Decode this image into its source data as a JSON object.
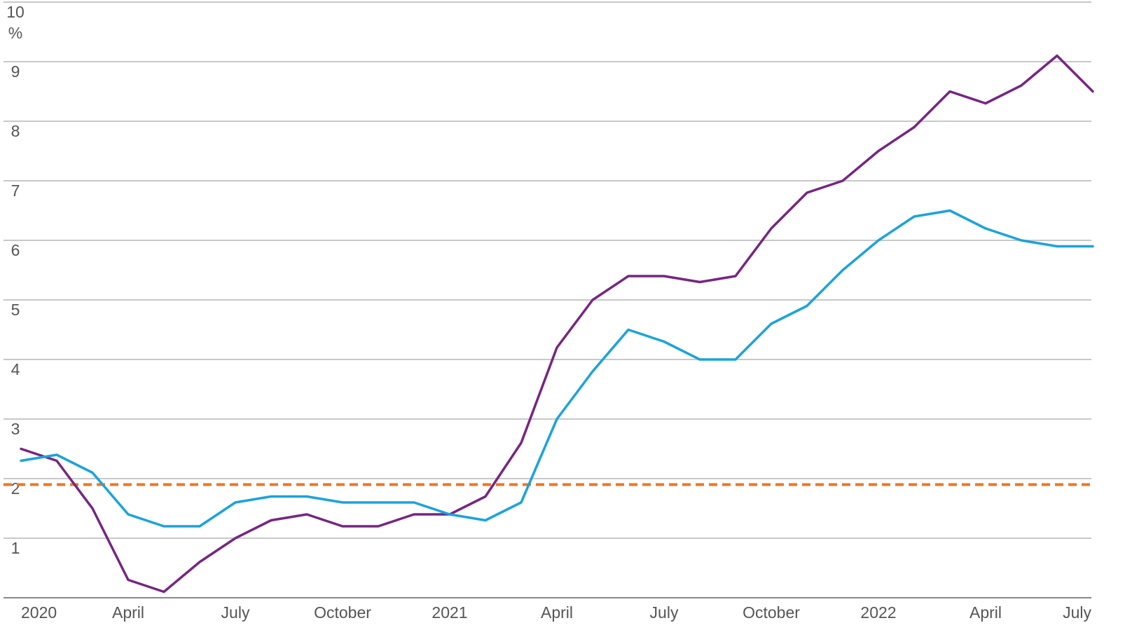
{
  "chart_data": {
    "type": "line",
    "title": "",
    "xlabel": "",
    "ylabel": "",
    "y_unit": "%",
    "ylim": [
      0,
      10
    ],
    "yticks": [
      {
        "value": 1,
        "label": "1"
      },
      {
        "value": 2,
        "label": "2"
      },
      {
        "value": 3,
        "label": "3"
      },
      {
        "value": 4,
        "label": "4"
      },
      {
        "value": 5,
        "label": "5"
      },
      {
        "value": 6,
        "label": "6"
      },
      {
        "value": 7,
        "label": "7"
      },
      {
        "value": 8,
        "label": "8"
      },
      {
        "value": 9,
        "label": "9"
      },
      {
        "value": 10,
        "label": "10"
      }
    ],
    "x": [
      "2020-01",
      "2020-02",
      "2020-03",
      "2020-04",
      "2020-05",
      "2020-06",
      "2020-07",
      "2020-08",
      "2020-09",
      "2020-10",
      "2020-11",
      "2020-12",
      "2021-01",
      "2021-02",
      "2021-03",
      "2021-04",
      "2021-05",
      "2021-06",
      "2021-07",
      "2021-08",
      "2021-09",
      "2021-10",
      "2021-11",
      "2021-12",
      "2022-01",
      "2022-02",
      "2022-03",
      "2022-04",
      "2022-05",
      "2022-06",
      "2022-07"
    ],
    "xticks": [
      {
        "x": "2020-01",
        "label": "2020"
      },
      {
        "x": "2020-04",
        "label": "April"
      },
      {
        "x": "2020-07",
        "label": "July"
      },
      {
        "x": "2020-10",
        "label": "October"
      },
      {
        "x": "2021-01",
        "label": "2021"
      },
      {
        "x": "2021-04",
        "label": "April"
      },
      {
        "x": "2021-07",
        "label": "July"
      },
      {
        "x": "2021-10",
        "label": "October"
      },
      {
        "x": "2022-01",
        "label": "2022"
      },
      {
        "x": "2022-04",
        "label": "April"
      },
      {
        "x": "2022-07",
        "label": "July"
      }
    ],
    "series": [
      {
        "color": "#772583",
        "values": [
          2.5,
          2.3,
          1.5,
          0.3,
          0.1,
          0.6,
          1.0,
          1.3,
          1.4,
          1.2,
          1.2,
          1.4,
          1.4,
          1.7,
          2.6,
          4.2,
          5.0,
          5.4,
          5.4,
          5.3,
          5.4,
          6.2,
          6.8,
          7.0,
          7.5,
          7.9,
          8.5,
          8.3,
          8.6,
          9.1,
          8.5
        ]
      },
      {
        "color": "#1aa3dd",
        "values": [
          2.3,
          2.4,
          2.1,
          1.4,
          1.2,
          1.2,
          1.6,
          1.7,
          1.7,
          1.6,
          1.6,
          1.6,
          1.4,
          1.3,
          1.6,
          3.0,
          3.8,
          4.5,
          4.3,
          4.0,
          4.0,
          4.6,
          4.9,
          5.5,
          6.0,
          6.4,
          6.5,
          6.2,
          6.0,
          5.9,
          5.9
        ]
      }
    ],
    "reference_line": {
      "value": 1.9,
      "color": "#ee7623",
      "style": "dashed"
    },
    "grid": true,
    "legend": "none"
  }
}
